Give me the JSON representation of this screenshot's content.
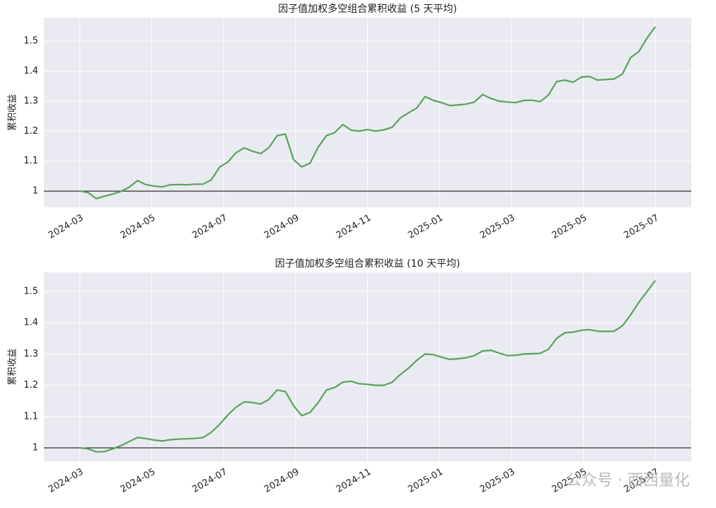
{
  "chart_data": [
    {
      "type": "line",
      "title": "因子值加权多空组合累积收益 (5 天平均)",
      "ylabel": "累积收益",
      "xlim": [
        "2024-02",
        "2025-08"
      ],
      "xticks": [
        "2024-03",
        "2024-05",
        "2024-07",
        "2024-09",
        "2024-11",
        "2025-01",
        "2025-03",
        "2025-05",
        "2025-07"
      ],
      "ylim": [
        0.946,
        1.578
      ],
      "yticks": [
        1.0,
        1.1,
        1.2,
        1.3,
        1.4,
        1.5
      ],
      "grid": true,
      "hline": 1.0,
      "series": [
        {
          "color": "#59a359",
          "values": [
            1.0,
            0.995,
            0.975,
            0.983,
            0.99,
            0.999,
            1.013,
            1.035,
            1.022,
            1.017,
            1.014,
            1.021,
            1.022,
            1.021,
            1.023,
            1.023,
            1.038,
            1.08,
            1.097,
            1.128,
            1.144,
            1.133,
            1.125,
            1.145,
            1.185,
            1.19,
            1.105,
            1.081,
            1.093,
            1.147,
            1.185,
            1.195,
            1.222,
            1.203,
            1.2,
            1.205,
            1.2,
            1.204,
            1.213,
            1.244,
            1.261,
            1.277,
            1.315,
            1.302,
            1.295,
            1.285,
            1.287,
            1.29,
            1.297,
            1.322,
            1.309,
            1.3,
            1.297,
            1.295,
            1.302,
            1.303,
            1.298,
            1.32,
            1.365,
            1.37,
            1.363,
            1.38,
            1.382,
            1.37,
            1.372,
            1.374,
            1.39,
            1.445,
            1.465,
            1.51,
            1.548
          ]
        }
      ]
    },
    {
      "type": "line",
      "title": "因子值加权多空组合累积收益 (10 天平均)",
      "ylabel": "累积收益",
      "xlim": [
        "2024-02",
        "2025-08"
      ],
      "xticks": [
        "2024-03",
        "2024-05",
        "2024-07",
        "2024-09",
        "2024-11",
        "2025-01",
        "2025-03",
        "2025-05",
        "2025-07"
      ],
      "ylim": [
        0.957,
        1.561
      ],
      "yticks": [
        1.0,
        1.1,
        1.2,
        1.3,
        1.4,
        1.5
      ],
      "grid": true,
      "hline": 1.0,
      "series": [
        {
          "color": "#59a359",
          "values": [
            1.0,
            0.997,
            0.987,
            0.988,
            0.997,
            1.007,
            1.02,
            1.033,
            1.03,
            1.025,
            1.022,
            1.026,
            1.028,
            1.029,
            1.03,
            1.033,
            1.05,
            1.075,
            1.105,
            1.13,
            1.147,
            1.145,
            1.14,
            1.155,
            1.185,
            1.18,
            1.135,
            1.103,
            1.113,
            1.145,
            1.185,
            1.193,
            1.21,
            1.213,
            1.205,
            1.203,
            1.2,
            1.2,
            1.21,
            1.235,
            1.255,
            1.28,
            1.3,
            1.298,
            1.29,
            1.283,
            1.285,
            1.288,
            1.295,
            1.31,
            1.312,
            1.303,
            1.295,
            1.296,
            1.3,
            1.301,
            1.302,
            1.315,
            1.35,
            1.368,
            1.37,
            1.376,
            1.378,
            1.373,
            1.372,
            1.373,
            1.39,
            1.425,
            1.465,
            1.5,
            1.535
          ]
        }
      ]
    }
  ],
  "watermark": "公众号 · 西西量化"
}
